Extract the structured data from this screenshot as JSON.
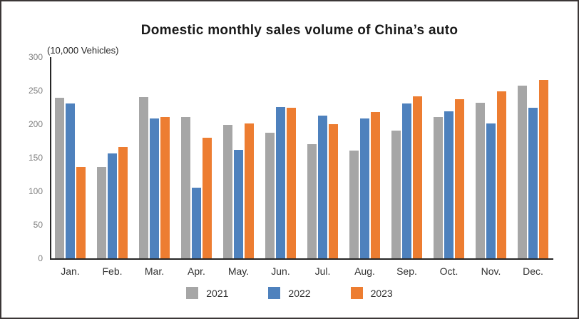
{
  "title": "Domestic monthly sales volume of China’s auto",
  "units_label": "(10,000 Vehicles)",
  "colors": {
    "series_2021": "#a6a6a6",
    "series_2022": "#4e81bd",
    "series_2023": "#ed7d31",
    "axis": "#262626",
    "tick_text": "#7f7f7f"
  },
  "chart_data": {
    "type": "bar",
    "title": "Domestic monthly sales volume of China’s auto",
    "ylabel": "(10,000 Vehicles)",
    "xlabel": "",
    "categories": [
      "Jan.",
      "Feb.",
      "Mar.",
      "Apr.",
      "May.",
      "Jun.",
      "Jul.",
      "Aug.",
      "Sep.",
      "Oct.",
      "Nov.",
      "Dec."
    ],
    "series": [
      {
        "name": "2021",
        "color": "#a6a6a6",
        "values": [
          239,
          136,
          240,
          211,
          199,
          187,
          170,
          161,
          190,
          211,
          232,
          257
        ]
      },
      {
        "name": "2022",
        "color": "#4e81bd",
        "values": [
          231,
          156,
          208,
          105,
          162,
          226,
          213,
          208,
          231,
          219,
          201,
          224
        ]
      },
      {
        "name": "2023",
        "color": "#ed7d31",
        "values": [
          136,
          166,
          211,
          180,
          201,
          225,
          200,
          218,
          242,
          237,
          249,
          266
        ]
      }
    ],
    "ylim": [
      0,
      300
    ],
    "yticks": [
      0,
      50,
      100,
      150,
      200,
      250,
      300
    ],
    "grid": false,
    "legend_position": "bottom"
  }
}
